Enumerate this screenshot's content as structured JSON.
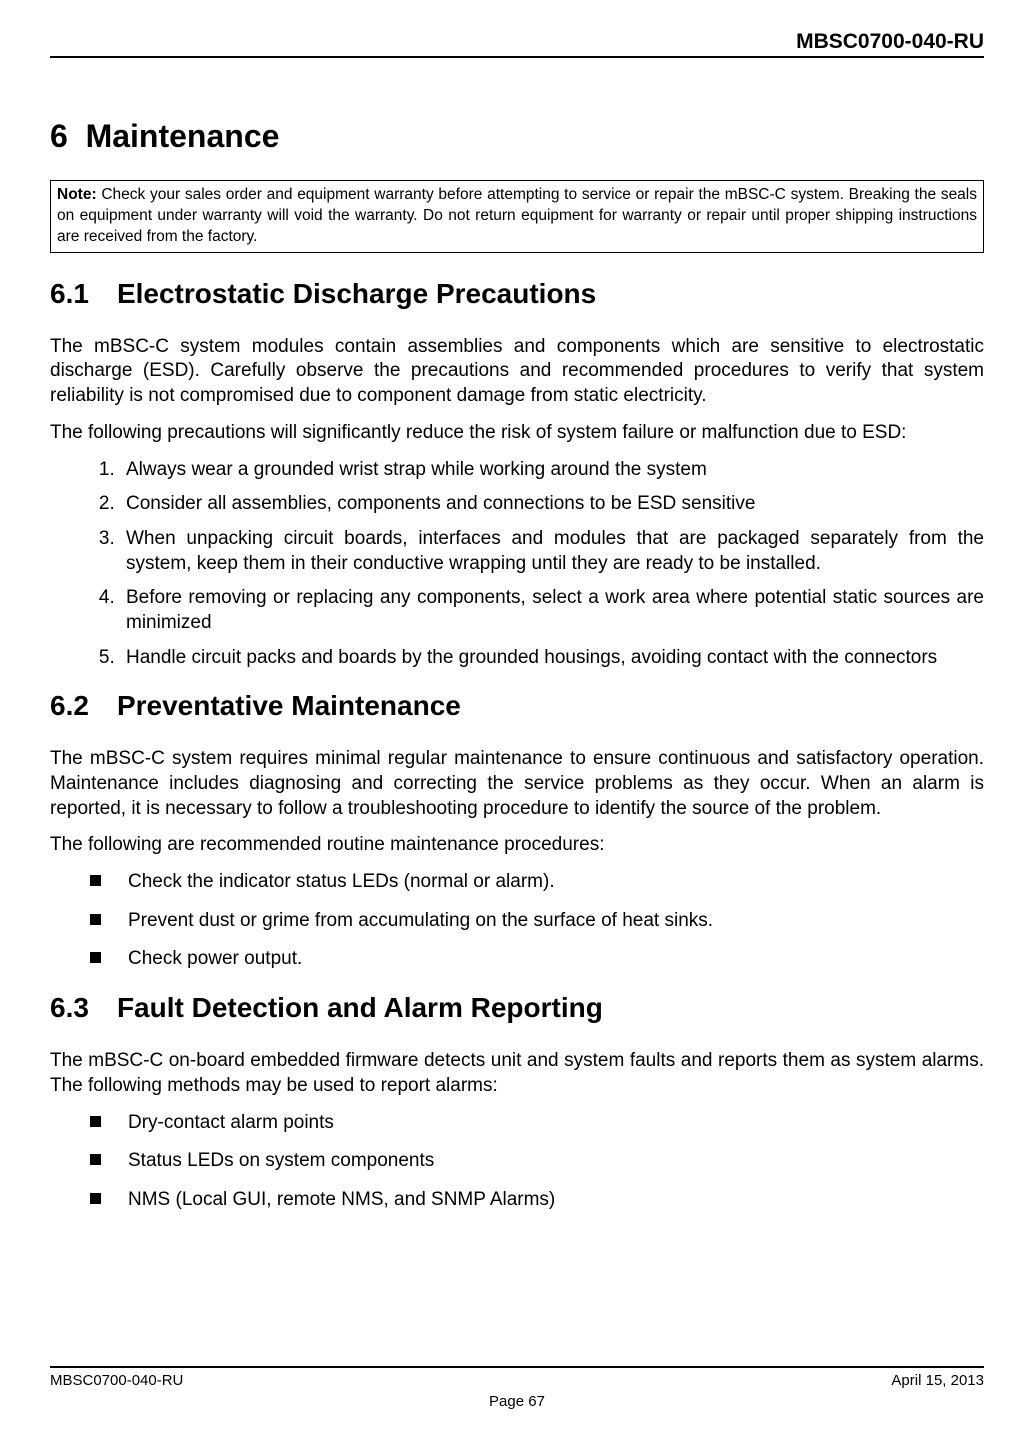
{
  "header": {
    "doc_id": "MBSC0700-040-RU"
  },
  "chapter": {
    "number": "6",
    "title": "Maintenance"
  },
  "note": {
    "label": "Note:",
    "text": " Check your sales order and equipment warranty before attempting to service or repair the mBSC-C system. Breaking the seals on equipment under warranty will void the warranty. Do not return equipment for warranty or repair until proper shipping instructions are received from the factory."
  },
  "sections": {
    "s61": {
      "num": "6.1",
      "title": "Electrostatic Discharge Precautions",
      "p1": "The mBSC-C system modules contain assemblies and components which are sensitive to electrostatic discharge (ESD). Carefully observe the precautions and recommended procedures to verify that system reliability is not compromised due to component damage from static electricity.",
      "p2": "The following precautions will significantly reduce the risk of system failure or malfunction due to ESD:",
      "list": {
        "i1": "Always wear a grounded wrist strap while working around the system",
        "i2": "Consider all assemblies, components and connections to be ESD sensitive",
        "i3": "When unpacking circuit boards, interfaces and modules that are packaged separately from the system, keep them in their conductive wrapping until they are ready to be installed.",
        "i4": "Before removing or replacing any components, select a work area where potential static sources are minimized",
        "i5": "Handle circuit packs and boards by the grounded housings, avoiding contact with the connectors"
      }
    },
    "s62": {
      "num": "6.2",
      "title": "Preventative Maintenance",
      "p1": "The mBSC-C system requires minimal regular maintenance to ensure continuous and satisfactory operation. Maintenance includes diagnosing and correcting the service problems as they occur. When an alarm is reported, it is necessary to follow a troubleshooting procedure to identify the source of the problem.",
      "p2": "The following are recommended routine maintenance procedures:",
      "list": {
        "i1": "Check the indicator status LEDs (normal or alarm).",
        "i2": "Prevent dust or grime from accumulating on the surface of heat sinks.",
        "i3": "Check power output."
      }
    },
    "s63": {
      "num": "6.3",
      "title": "Fault Detection and Alarm Reporting",
      "p1": "The mBSC-C on-board embedded firmware detects unit and system faults and reports them as system alarms. The following methods may be used to report alarms:",
      "list": {
        "i1": "Dry-contact alarm points",
        "i2": "Status LEDs on system components",
        "i3": "NMS (Local GUI, remote NMS, and SNMP Alarms)"
      }
    }
  },
  "footer": {
    "left": "MBSC0700-040-RU",
    "right": "April 15, 2013",
    "page": "Page 67"
  }
}
